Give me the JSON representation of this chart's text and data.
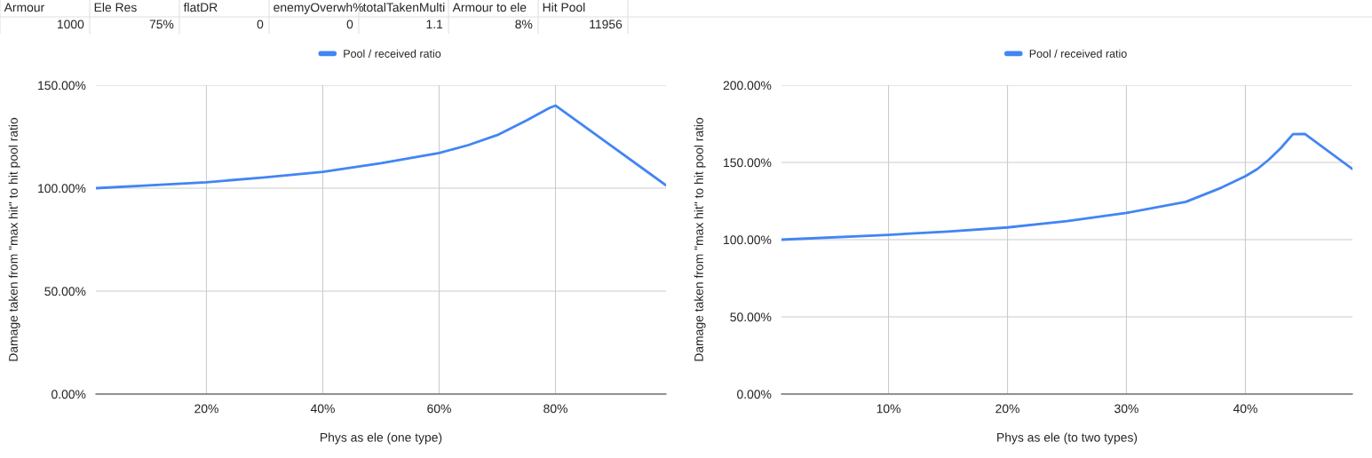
{
  "chart_data": [
    {
      "type": "other",
      "annotations": [
        "Armour",
        "Ele Res",
        "flatDR",
        "enemyOverwh%",
        "totalTakenMulti",
        "Armour to ele",
        "Hit Pool",
        "1000",
        "75%",
        "0",
        "0",
        "1.1",
        "8%",
        "11956"
      ]
    },
    {
      "type": "line",
      "xlabel": "Phys as ele (one type)",
      "ylabel": "Damage taken from \"max hit\" to hit pool ratio",
      "legend": "top",
      "grid": true,
      "series": [
        {
          "name": "Pool / received ratio",
          "color": "#4285f4",
          "x": [
            1,
            10,
            20,
            30,
            40,
            50,
            60,
            65,
            70,
            75,
            79,
            80,
            99
          ],
          "values": [
            100,
            101.3,
            102.9,
            105.2,
            107.9,
            112.1,
            117.1,
            120.9,
            125.8,
            132.9,
            139,
            140.1,
            101.4
          ]
        }
      ],
      "xlim": [
        1,
        99
      ],
      "xticks": [
        {
          "value": 20,
          "label": "20%"
        },
        {
          "value": 40,
          "label": "40%"
        },
        {
          "value": 60,
          "label": "60%"
        },
        {
          "value": 80,
          "label": "80%"
        }
      ],
      "ylim": [
        0,
        150
      ],
      "yticks": [
        {
          "value": 0,
          "label": "0.00%"
        },
        {
          "value": 50,
          "label": "50.00%"
        },
        {
          "value": 100,
          "label": "100.00%"
        },
        {
          "value": 150,
          "label": "150.00%"
        }
      ]
    },
    {
      "type": "line",
      "xlabel": "Phys as ele (to two types)",
      "ylabel": "Damage taken from \"max hit\" to hit pool ratio",
      "legend": "top",
      "grid": true,
      "series": [
        {
          "name": "Pool / received ratio",
          "color": "#4285f4",
          "x": [
            1,
            10,
            15,
            20,
            25,
            30,
            35,
            38,
            40,
            41,
            42,
            43,
            44,
            45,
            49
          ],
          "values": [
            100,
            103.1,
            105.3,
            107.9,
            112,
            117.3,
            124.5,
            133.7,
            141.1,
            145.7,
            152,
            159.5,
            168.3,
            168.5,
            145.7
          ]
        }
      ],
      "xlim": [
        1,
        49
      ],
      "xticks": [
        {
          "value": 10,
          "label": "10%"
        },
        {
          "value": 20,
          "label": "20%"
        },
        {
          "value": 30,
          "label": "30%"
        },
        {
          "value": 40,
          "label": "40%"
        }
      ],
      "ylim": [
        0,
        200
      ],
      "yticks": [
        {
          "value": 0,
          "label": "0.00%"
        },
        {
          "value": 50,
          "label": "50.00%"
        },
        {
          "value": 100,
          "label": "100.00%"
        },
        {
          "value": 150,
          "label": "150.00%"
        },
        {
          "value": 200,
          "label": "200.00%"
        }
      ]
    }
  ]
}
